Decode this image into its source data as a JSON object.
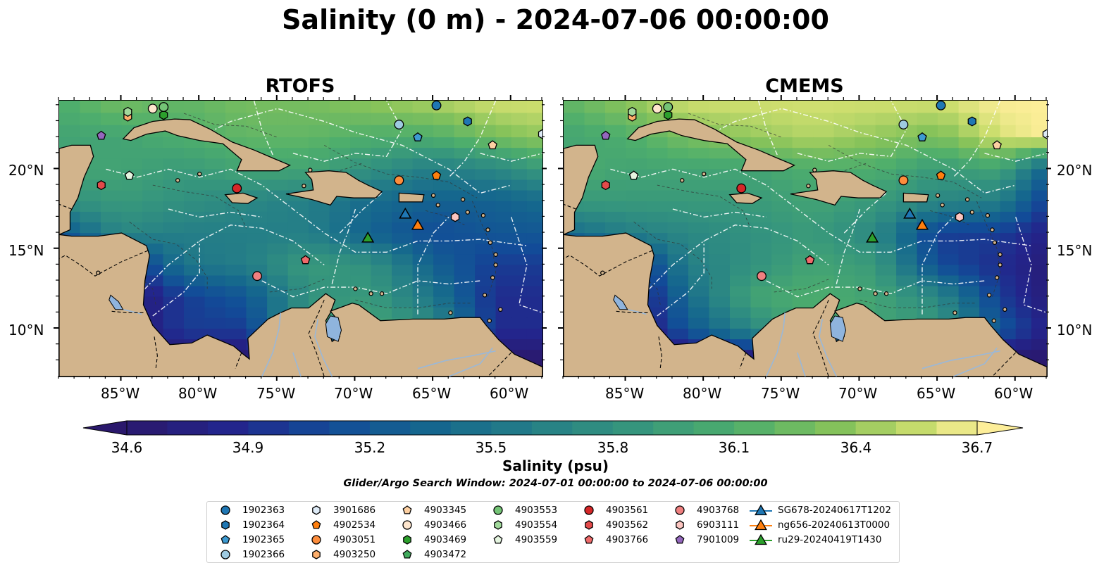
{
  "title": "Salinity (0 m) - 2024-07-06 00:00:00",
  "panels": [
    {
      "id": "rtofs",
      "title": "RTOFS"
    },
    {
      "id": "cmems",
      "title": "CMEMS"
    }
  ],
  "map": {
    "lon_range": [
      -89,
      -58
    ],
    "lat_range": [
      7,
      24.3
    ],
    "lon_ticks": [
      "85°W",
      "80°W",
      "75°W",
      "70°W",
      "65°W",
      "60°W"
    ],
    "lat_ticks": [
      "20°N",
      "15°N",
      "10°N"
    ],
    "land_color": "#d2b48c",
    "lake_color": "#8fb4dd"
  },
  "colorbar": {
    "label": "Salinity (psu)",
    "min": 34.6,
    "max": 36.7,
    "tick_labels": [
      "34.6",
      "34.9",
      "35.2",
      "35.5",
      "35.8",
      "36.1",
      "36.4",
      "36.7"
    ],
    "colormap": "haline",
    "extend": "both"
  },
  "search_window": "Glider/Argo Search Window: 2024-07-01 00:00:00 to 2024-07-06 00:00:00",
  "legend": [
    {
      "label": "1902363",
      "marker": "circle",
      "color": "#1f77b4"
    },
    {
      "label": "1902364",
      "marker": "hexagon",
      "color": "#1f77b4"
    },
    {
      "label": "1902365",
      "marker": "pentagon",
      "color": "#3d9ad1"
    },
    {
      "label": "1902366",
      "marker": "circle",
      "color": "#9ecae1"
    },
    {
      "label": "3901686",
      "marker": "hexagon",
      "color": "#deebf7"
    },
    {
      "label": "4902534",
      "marker": "pentagon",
      "color": "#ff7f0e"
    },
    {
      "label": "4903051",
      "marker": "circle",
      "color": "#fd8d3c"
    },
    {
      "label": "4903250",
      "marker": "hexagon",
      "color": "#fdae6b"
    },
    {
      "label": "4903345",
      "marker": "pentagon",
      "color": "#fdd0a2"
    },
    {
      "label": "4903466",
      "marker": "circle",
      "color": "#fee6ce"
    },
    {
      "label": "4903469",
      "marker": "hexagon",
      "color": "#2ca02c"
    },
    {
      "label": "4903472",
      "marker": "pentagon",
      "color": "#41ab5d"
    },
    {
      "label": "4903553",
      "marker": "circle",
      "color": "#74c476"
    },
    {
      "label": "4903554",
      "marker": "hexagon",
      "color": "#a1d99b"
    },
    {
      "label": "4903559",
      "marker": "pentagon",
      "color": "#e5f5e0"
    },
    {
      "label": "4903561",
      "marker": "circle",
      "color": "#d62728"
    },
    {
      "label": "4903562",
      "marker": "hexagon",
      "color": "#e34a4a"
    },
    {
      "label": "4903766",
      "marker": "pentagon",
      "color": "#ef6a6a"
    },
    {
      "label": "4903768",
      "marker": "circle",
      "color": "#f08080"
    },
    {
      "label": "6903111",
      "marker": "hexagon",
      "color": "#fcc5c0"
    },
    {
      "label": "7901009",
      "marker": "pentagon",
      "color": "#9467bd"
    },
    {
      "label": "SG678-20240617T1202",
      "marker": "triangle-line",
      "color": "#1f77b4"
    },
    {
      "label": "ng656-20240613T0000",
      "marker": "triangle-line",
      "color": "#ff7f0e"
    },
    {
      "label": "ru29-20240419T1430",
      "marker": "triangle-line",
      "color": "#2ca02c"
    }
  ],
  "floats": [
    {
      "lon": -64.8,
      "lat": 24.0,
      "marker": "circle",
      "color": "#1f77b4"
    },
    {
      "lon": -62.8,
      "lat": 23.0,
      "marker": "hexagon",
      "color": "#1f77b4"
    },
    {
      "lon": -66.0,
      "lat": 22.0,
      "marker": "pentagon",
      "color": "#3d9ad1"
    },
    {
      "lon": -67.2,
      "lat": 22.8,
      "marker": "circle",
      "color": "#9ecae1"
    },
    {
      "lon": -58.0,
      "lat": 22.2,
      "marker": "hexagon",
      "color": "#deebf7"
    },
    {
      "lon": -64.8,
      "lat": 19.6,
      "marker": "pentagon",
      "color": "#ff7f0e"
    },
    {
      "lon": -67.2,
      "lat": 19.3,
      "marker": "circle",
      "color": "#fd8d3c"
    },
    {
      "lon": -84.6,
      "lat": 23.3,
      "marker": "hexagon",
      "color": "#fdae6b"
    },
    {
      "lon": -61.2,
      "lat": 21.5,
      "marker": "pentagon",
      "color": "#fdd0a2"
    },
    {
      "lon": -83.0,
      "lat": 23.8,
      "marker": "circle",
      "color": "#fee6ce"
    },
    {
      "lon": -82.3,
      "lat": 23.4,
      "marker": "hexagon",
      "color": "#2ca02c"
    },
    {
      "lon": -82.3,
      "lat": 23.9,
      "marker": "circle",
      "color": "#74c476"
    },
    {
      "lon": -84.6,
      "lat": 23.6,
      "marker": "hexagon",
      "color": "#a1d99b"
    },
    {
      "lon": -84.5,
      "lat": 19.6,
      "marker": "pentagon",
      "color": "#e5f5e0"
    },
    {
      "lon": -77.6,
      "lat": 18.8,
      "marker": "circle",
      "color": "#d62728"
    },
    {
      "lon": -86.3,
      "lat": 19.0,
      "marker": "hexagon",
      "color": "#e34a4a"
    },
    {
      "lon": -73.2,
      "lat": 14.3,
      "marker": "pentagon",
      "color": "#ef6a6a"
    },
    {
      "lon": -76.3,
      "lat": 13.3,
      "marker": "circle",
      "color": "#f08080"
    },
    {
      "lon": -63.6,
      "lat": 17.0,
      "marker": "hexagon",
      "color": "#fcc5c0"
    },
    {
      "lon": -86.3,
      "lat": 22.1,
      "marker": "pentagon",
      "color": "#9467bd"
    }
  ],
  "gliders": [
    {
      "lon": -66.8,
      "lat": 17.2,
      "color": "#1f77b4"
    },
    {
      "lon": -66.0,
      "lat": 16.5,
      "color": "#ff7f0e"
    },
    {
      "lon": -69.2,
      "lat": 15.7,
      "color": "#2ca02c"
    }
  ]
}
